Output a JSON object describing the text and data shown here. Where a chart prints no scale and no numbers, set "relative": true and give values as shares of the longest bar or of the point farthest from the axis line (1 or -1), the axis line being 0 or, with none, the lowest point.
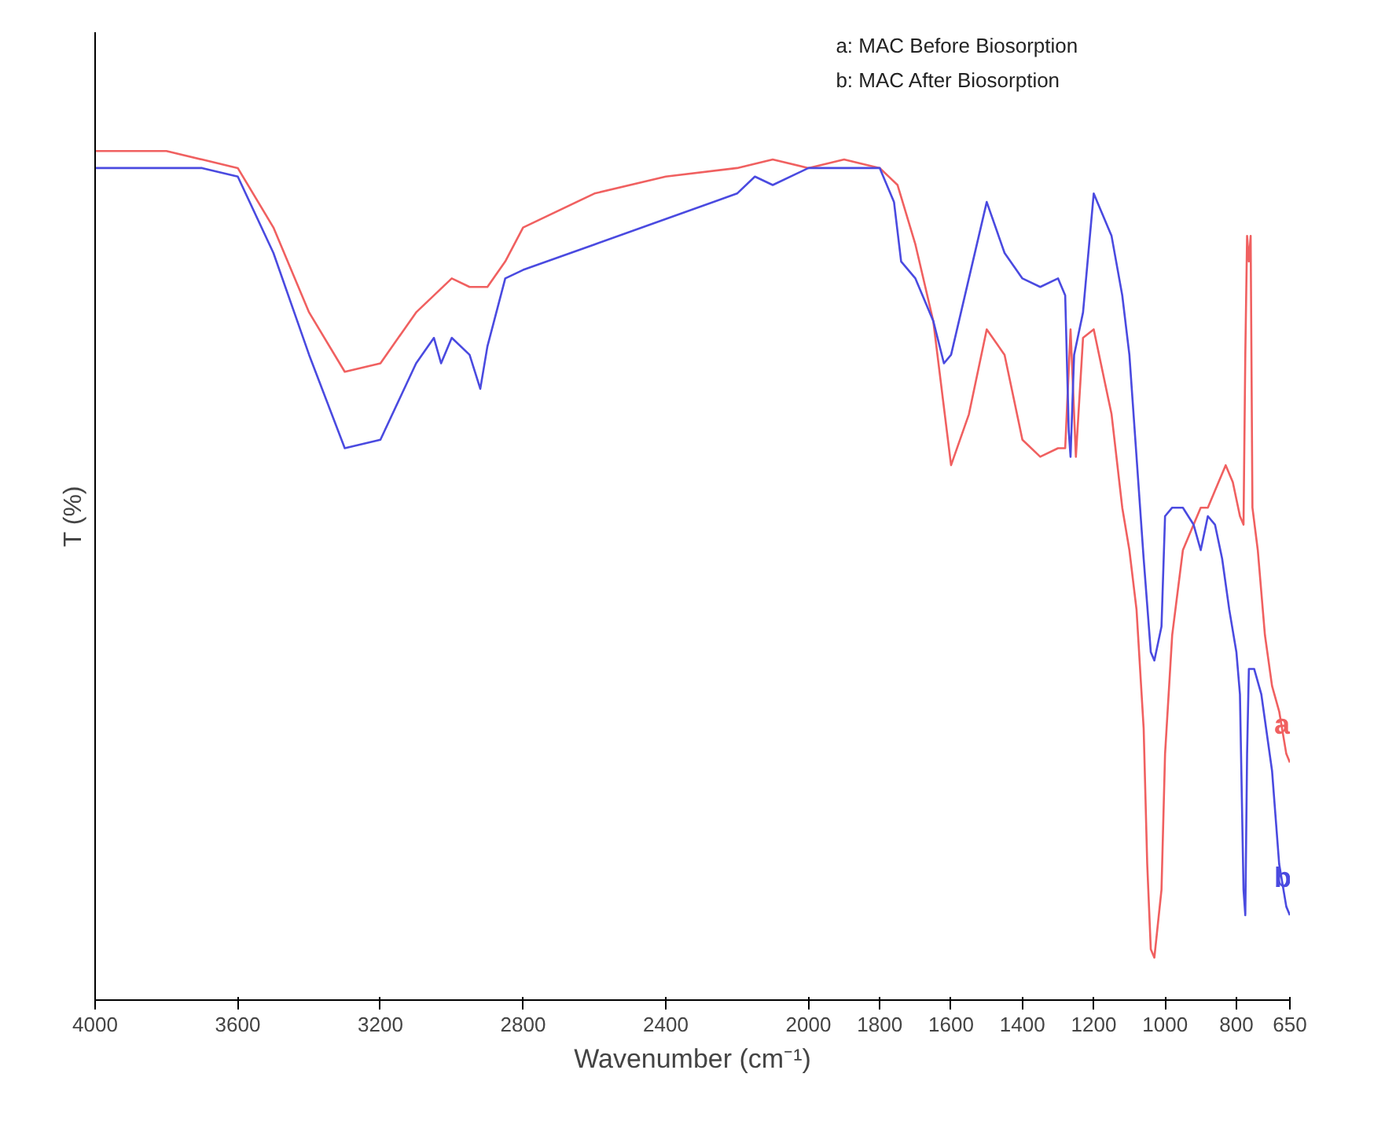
{
  "chart_data": {
    "type": "line",
    "relative": true,
    "xlabel": "Wavenumber (cm⁻¹)",
    "ylabel": "T (%)",
    "xlim": [
      4000,
      650
    ],
    "xticks": [
      4000,
      3600,
      3200,
      2800,
      2400,
      2000,
      1800,
      1600,
      1400,
      1200,
      1000,
      800,
      650
    ],
    "grid": false,
    "marker": "none",
    "line_style": "solid",
    "annotations": [
      "a: MAC Before Biosorption",
      "b: MAC After Biosorption"
    ],
    "series": [
      {
        "name": "a",
        "color": "#f06060",
        "x": [
          4000,
          3800,
          3700,
          3600,
          3500,
          3400,
          3300,
          3200,
          3100,
          3000,
          2950,
          2900,
          2850,
          2800,
          2600,
          2400,
          2200,
          2100,
          2000,
          1900,
          1800,
          1750,
          1700,
          1650,
          1600,
          1550,
          1500,
          1450,
          1400,
          1350,
          1300,
          1280,
          1265,
          1250,
          1230,
          1200,
          1150,
          1120,
          1100,
          1080,
          1060,
          1050,
          1040,
          1030,
          1010,
          1000,
          980,
          950,
          900,
          880,
          860,
          830,
          810,
          790,
          780,
          775,
          770,
          765,
          760,
          755,
          740,
          720,
          700,
          680,
          660,
          650
        ],
        "values": [
          1.0,
          1.0,
          0.99,
          0.98,
          0.91,
          0.81,
          0.74,
          0.75,
          0.81,
          0.85,
          0.84,
          0.84,
          0.87,
          0.91,
          0.95,
          0.97,
          0.98,
          0.99,
          0.98,
          0.99,
          0.98,
          0.96,
          0.89,
          0.8,
          0.63,
          0.69,
          0.79,
          0.76,
          0.66,
          0.64,
          0.65,
          0.65,
          0.79,
          0.64,
          0.78,
          0.79,
          0.69,
          0.58,
          0.53,
          0.46,
          0.32,
          0.16,
          0.06,
          0.05,
          0.13,
          0.29,
          0.43,
          0.53,
          0.58,
          0.58,
          0.6,
          0.63,
          0.61,
          0.57,
          0.56,
          0.76,
          0.9,
          0.87,
          0.9,
          0.58,
          0.53,
          0.43,
          0.37,
          0.34,
          0.29,
          0.28
        ]
      },
      {
        "name": "b",
        "color": "#4a4ae0",
        "x": [
          4000,
          3800,
          3700,
          3600,
          3500,
          3400,
          3300,
          3200,
          3100,
          3050,
          3030,
          3000,
          2950,
          2920,
          2900,
          2850,
          2800,
          2600,
          2400,
          2200,
          2150,
          2100,
          2000,
          1900,
          1800,
          1760,
          1740,
          1700,
          1650,
          1620,
          1600,
          1550,
          1500,
          1450,
          1400,
          1350,
          1300,
          1280,
          1270,
          1265,
          1255,
          1230,
          1200,
          1150,
          1120,
          1100,
          1080,
          1060,
          1040,
          1030,
          1010,
          1000,
          980,
          950,
          920,
          900,
          880,
          860,
          840,
          820,
          800,
          790,
          780,
          775,
          770,
          765,
          750,
          730,
          700,
          680,
          660,
          650
        ],
        "values": [
          0.98,
          0.98,
          0.98,
          0.97,
          0.88,
          0.76,
          0.65,
          0.66,
          0.75,
          0.78,
          0.75,
          0.78,
          0.76,
          0.72,
          0.77,
          0.85,
          0.86,
          0.89,
          0.92,
          0.95,
          0.97,
          0.96,
          0.98,
          0.98,
          0.98,
          0.94,
          0.87,
          0.85,
          0.8,
          0.75,
          0.76,
          0.85,
          0.94,
          0.88,
          0.85,
          0.84,
          0.85,
          0.83,
          0.67,
          0.64,
          0.76,
          0.81,
          0.95,
          0.9,
          0.83,
          0.76,
          0.64,
          0.52,
          0.41,
          0.4,
          0.44,
          0.57,
          0.58,
          0.58,
          0.56,
          0.53,
          0.57,
          0.56,
          0.52,
          0.46,
          0.41,
          0.36,
          0.13,
          0.1,
          0.29,
          0.39,
          0.39,
          0.36,
          0.27,
          0.16,
          0.11,
          0.1
        ]
      }
    ]
  }
}
